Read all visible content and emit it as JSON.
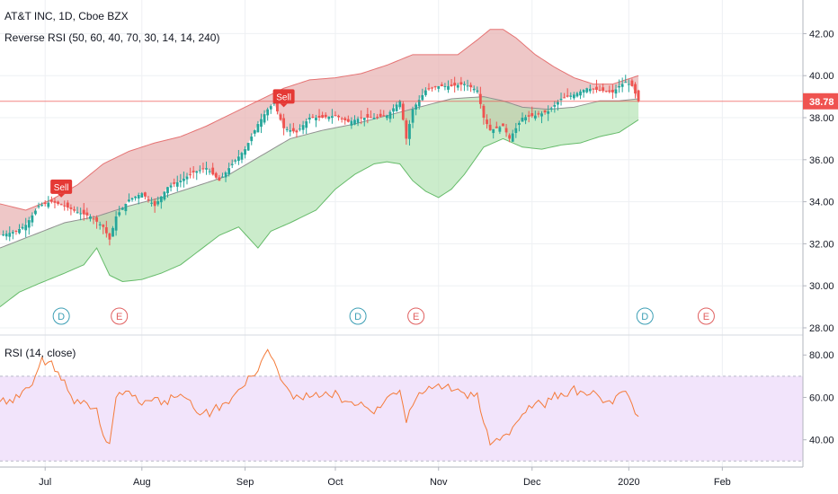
{
  "header": {
    "title": "AT&T INC, 1D, Cboe BZX",
    "indicator": "Reverse RSI (50, 60, 40, 70, 30, 14, 14, 240)"
  },
  "rsi_panel": {
    "title": "RSI (14, close)"
  },
  "last_price": {
    "value": 38.78,
    "label": "38.78"
  },
  "colors": {
    "up": "#26a69a",
    "down": "#ef5350",
    "upper_band_fill": "#e8b4b4",
    "lower_band_fill": "#a8e0a8",
    "rsi_line": "#f47b3a",
    "rsi_band_fill": "#f2e4fb",
    "ma_line": "#909090",
    "dividend": "#3d9fb5",
    "earnings": "#e06060"
  },
  "events": [
    {
      "type": "dividend",
      "label": "D",
      "x": 19
    },
    {
      "type": "earnings",
      "label": "E",
      "x": 37
    },
    {
      "type": "dividend",
      "label": "D",
      "x": 111
    },
    {
      "type": "earnings",
      "label": "E",
      "x": 129
    },
    {
      "type": "dividend",
      "label": "D",
      "x": 200
    },
    {
      "type": "earnings",
      "label": "E",
      "x": 219
    }
  ],
  "signals": [
    {
      "label": "Sell",
      "x": 19,
      "price": 34.2
    },
    {
      "label": "Sell",
      "x": 88,
      "price": 38.5
    }
  ],
  "chart_data": [
    {
      "type": "candlestick",
      "title": "AT&T INC, 1D, Cboe BZX",
      "x_tick_labels": [
        {
          "x": 14,
          "label": "Jul"
        },
        {
          "x": 44,
          "label": "Aug"
        },
        {
          "x": 76,
          "label": "Sep"
        },
        {
          "x": 104,
          "label": "Oct"
        },
        {
          "x": 136,
          "label": "Nov"
        },
        {
          "x": 165,
          "label": "Dec"
        },
        {
          "x": 195,
          "label": "2020"
        },
        {
          "x": 224,
          "label": "Feb"
        }
      ],
      "xlim": [
        0,
        249
      ],
      "y_ticks": [
        28,
        30,
        32,
        34,
        36,
        38,
        40,
        42
      ],
      "y_tick_labels": [
        "28.00",
        "30.00",
        "32.00",
        "34.00",
        "36.00",
        "38.00",
        "40.00",
        "42.00"
      ],
      "ylim": [
        27.7,
        43.6
      ],
      "grid": true,
      "close_keypoints": [
        [
          0,
          32.4
        ],
        [
          5,
          32.6
        ],
        [
          8,
          32.9
        ],
        [
          12,
          33.8
        ],
        [
          16,
          34.0
        ],
        [
          20,
          33.8
        ],
        [
          24,
          33.5
        ],
        [
          28,
          33.3
        ],
        [
          32,
          32.8
        ],
        [
          34,
          32.2
        ],
        [
          36,
          33.3
        ],
        [
          40,
          34.1
        ],
        [
          44,
          34.4
        ],
        [
          48,
          33.8
        ],
        [
          52,
          34.7
        ],
        [
          56,
          35.0
        ],
        [
          60,
          35.4
        ],
        [
          64,
          35.6
        ],
        [
          68,
          35.0
        ],
        [
          72,
          35.8
        ],
        [
          76,
          36.5
        ],
        [
          80,
          37.7
        ],
        [
          83,
          38.4
        ],
        [
          85,
          38.7
        ],
        [
          88,
          37.5
        ],
        [
          92,
          37.3
        ],
        [
          96,
          38.0
        ],
        [
          100,
          38.0
        ],
        [
          104,
          38.1
        ],
        [
          108,
          37.8
        ],
        [
          112,
          38.0
        ],
        [
          116,
          38.0
        ],
        [
          120,
          38.1
        ],
        [
          124,
          38.8
        ],
        [
          126,
          37.0
        ],
        [
          128,
          38.4
        ],
        [
          132,
          39.3
        ],
        [
          136,
          39.5
        ],
        [
          140,
          39.5
        ],
        [
          144,
          39.6
        ],
        [
          148,
          39.3
        ],
        [
          150,
          38.0
        ],
        [
          152,
          37.4
        ],
        [
          156,
          37.6
        ],
        [
          158,
          37.0
        ],
        [
          162,
          38.0
        ],
        [
          166,
          38.1
        ],
        [
          170,
          38.3
        ],
        [
          174,
          38.9
        ],
        [
          178,
          39.1
        ],
        [
          182,
          39.4
        ],
        [
          186,
          39.3
        ],
        [
          190,
          39.2
        ],
        [
          192,
          39.5
        ],
        [
          194,
          39.7
        ],
        [
          196,
          39.5
        ],
        [
          198,
          38.8
        ]
      ],
      "upper_band_keypoints": [
        [
          0,
          33.9
        ],
        [
          8,
          33.6
        ],
        [
          16,
          34.1
        ],
        [
          24,
          34.8
        ],
        [
          32,
          35.8
        ],
        [
          40,
          36.4
        ],
        [
          48,
          36.8
        ],
        [
          56,
          37.1
        ],
        [
          64,
          37.6
        ],
        [
          72,
          38.2
        ],
        [
          80,
          38.8
        ],
        [
          88,
          39.4
        ],
        [
          96,
          39.8
        ],
        [
          104,
          39.9
        ],
        [
          112,
          40.1
        ],
        [
          120,
          40.5
        ],
        [
          128,
          41.0
        ],
        [
          136,
          41.0
        ],
        [
          142,
          41.0
        ],
        [
          148,
          41.7
        ],
        [
          152,
          42.2
        ],
        [
          156,
          42.2
        ],
        [
          160,
          41.8
        ],
        [
          166,
          41.0
        ],
        [
          172,
          40.4
        ],
        [
          178,
          39.9
        ],
        [
          184,
          39.6
        ],
        [
          190,
          39.6
        ],
        [
          194,
          39.8
        ],
        [
          198,
          40.0
        ]
      ],
      "ma_keypoints": [
        [
          0,
          31.8
        ],
        [
          10,
          32.4
        ],
        [
          20,
          33.0
        ],
        [
          30,
          33.3
        ],
        [
          40,
          33.8
        ],
        [
          50,
          34.2
        ],
        [
          60,
          34.7
        ],
        [
          70,
          35.2
        ],
        [
          80,
          36.1
        ],
        [
          90,
          37.0
        ],
        [
          100,
          37.4
        ],
        [
          110,
          37.7
        ],
        [
          120,
          38.1
        ],
        [
          130,
          38.5
        ],
        [
          140,
          38.9
        ],
        [
          150,
          39.0
        ],
        [
          156,
          38.8
        ],
        [
          162,
          38.5
        ],
        [
          170,
          38.4
        ],
        [
          178,
          38.5
        ],
        [
          186,
          38.8
        ],
        [
          192,
          38.8
        ],
        [
          198,
          38.9
        ]
      ],
      "lower_band_keypoints": [
        [
          0,
          29.0
        ],
        [
          6,
          29.7
        ],
        [
          12,
          30.1
        ],
        [
          20,
          30.6
        ],
        [
          26,
          31.0
        ],
        [
          30,
          31.8
        ],
        [
          34,
          30.5
        ],
        [
          38,
          30.2
        ],
        [
          44,
          30.3
        ],
        [
          50,
          30.6
        ],
        [
          56,
          31.0
        ],
        [
          62,
          31.7
        ],
        [
          68,
          32.4
        ],
        [
          74,
          32.8
        ],
        [
          80,
          31.8
        ],
        [
          84,
          32.6
        ],
        [
          90,
          33.0
        ],
        [
          98,
          33.6
        ],
        [
          104,
          34.6
        ],
        [
          110,
          35.3
        ],
        [
          116,
          35.8
        ],
        [
          120,
          35.9
        ],
        [
          124,
          35.8
        ],
        [
          128,
          35.0
        ],
        [
          132,
          34.5
        ],
        [
          136,
          34.2
        ],
        [
          140,
          34.6
        ],
        [
          144,
          35.3
        ],
        [
          150,
          36.6
        ],
        [
          156,
          37.0
        ],
        [
          162,
          36.6
        ],
        [
          168,
          36.5
        ],
        [
          174,
          36.7
        ],
        [
          180,
          36.8
        ],
        [
          186,
          37.1
        ],
        [
          192,
          37.3
        ],
        [
          198,
          37.9
        ]
      ]
    },
    {
      "type": "line",
      "title": "RSI (14, close)",
      "y_ticks": [
        40,
        60,
        80
      ],
      "y_tick_labels": [
        "40.00",
        "60.00",
        "80.00"
      ],
      "ylim": [
        28,
        89
      ],
      "band": [
        30,
        70
      ],
      "xlim": [
        0,
        249
      ],
      "values_keypoints": [
        [
          0,
          58
        ],
        [
          6,
          60
        ],
        [
          10,
          66
        ],
        [
          13,
          78
        ],
        [
          16,
          76
        ],
        [
          19,
          70
        ],
        [
          22,
          60
        ],
        [
          26,
          58
        ],
        [
          30,
          55
        ],
        [
          32,
          40
        ],
        [
          34,
          38
        ],
        [
          36,
          60
        ],
        [
          40,
          64
        ],
        [
          44,
          58
        ],
        [
          48,
          60
        ],
        [
          52,
          58
        ],
        [
          56,
          62
        ],
        [
          60,
          55
        ],
        [
          64,
          52
        ],
        [
          68,
          56
        ],
        [
          72,
          60
        ],
        [
          76,
          66
        ],
        [
          80,
          74
        ],
        [
          83,
          83
        ],
        [
          86,
          72
        ],
        [
          88,
          65
        ],
        [
          92,
          60
        ],
        [
          96,
          60
        ],
        [
          100,
          60
        ],
        [
          104,
          62
        ],
        [
          108,
          58
        ],
        [
          112,
          56
        ],
        [
          116,
          54
        ],
        [
          120,
          60
        ],
        [
          124,
          62
        ],
        [
          126,
          48
        ],
        [
          128,
          58
        ],
        [
          132,
          63
        ],
        [
          136,
          66
        ],
        [
          140,
          64
        ],
        [
          144,
          62
        ],
        [
          148,
          60
        ],
        [
          150,
          48
        ],
        [
          152,
          38
        ],
        [
          156,
          42
        ],
        [
          158,
          44
        ],
        [
          162,
          52
        ],
        [
          166,
          56
        ],
        [
          170,
          58
        ],
        [
          174,
          62
        ],
        [
          178,
          64
        ],
        [
          182,
          62
        ],
        [
          186,
          60
        ],
        [
          190,
          58
        ],
        [
          192,
          62
        ],
        [
          194,
          63
        ],
        [
          196,
          58
        ],
        [
          198,
          51
        ]
      ]
    }
  ]
}
